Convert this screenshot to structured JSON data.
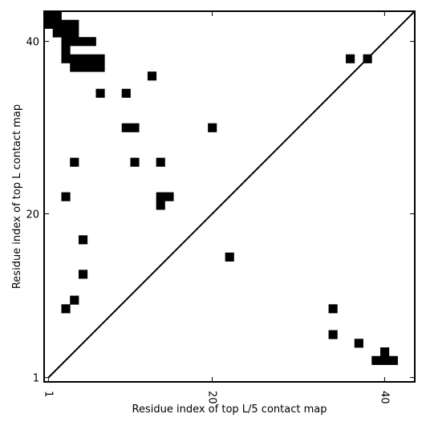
{
  "chart_data": {
    "type": "heatmap",
    "title": "",
    "xlabel": "Residue index of top L/5 contact map",
    "ylabel": "Residue index of top L contact map",
    "xlim": [
      0.5,
      43.5
    ],
    "ylim": [
      0.5,
      43.5
    ],
    "x_ticks": [
      1,
      20,
      40
    ],
    "y_ticks": [
      1,
      20,
      40
    ],
    "x_tick_labels": [
      "1",
      "20",
      "40"
    ],
    "y_tick_labels": [
      "1",
      "20",
      "40"
    ],
    "x_tick_rotation": "vertical",
    "diagonal": true,
    "grid": false,
    "lower_triangle_cells": [
      [
        36,
        38
      ],
      [
        38,
        38
      ],
      [
        20,
        30
      ],
      [
        22,
        15
      ],
      [
        34,
        9
      ],
      [
        34,
        6
      ],
      [
        37,
        5
      ],
      [
        39,
        3
      ],
      [
        40,
        3
      ],
      [
        41,
        3
      ],
      [
        40,
        4
      ]
    ],
    "upper_triangle_cells": [
      [
        1,
        43
      ],
      [
        2,
        43
      ],
      [
        1,
        42
      ],
      [
        2,
        42
      ],
      [
        3,
        42
      ],
      [
        4,
        42
      ],
      [
        2,
        41
      ],
      [
        3,
        41
      ],
      [
        4,
        41
      ],
      [
        3,
        40
      ],
      [
        4,
        40
      ],
      [
        5,
        40
      ],
      [
        6,
        40
      ],
      [
        3,
        39
      ],
      [
        3,
        38
      ],
      [
        4,
        38
      ],
      [
        5,
        38
      ],
      [
        6,
        38
      ],
      [
        7,
        38
      ],
      [
        4,
        37
      ],
      [
        5,
        37
      ],
      [
        6,
        37
      ],
      [
        7,
        37
      ],
      [
        13,
        36
      ],
      [
        7,
        34
      ],
      [
        10,
        34
      ],
      [
        10,
        30
      ],
      [
        11,
        30
      ],
      [
        4,
        26
      ],
      [
        11,
        26
      ],
      [
        14,
        26
      ],
      [
        3,
        22
      ],
      [
        14,
        22
      ],
      [
        15,
        22
      ],
      [
        14,
        21
      ],
      [
        5,
        17
      ],
      [
        5,
        13
      ],
      [
        4,
        10
      ],
      [
        3,
        9
      ]
    ]
  }
}
